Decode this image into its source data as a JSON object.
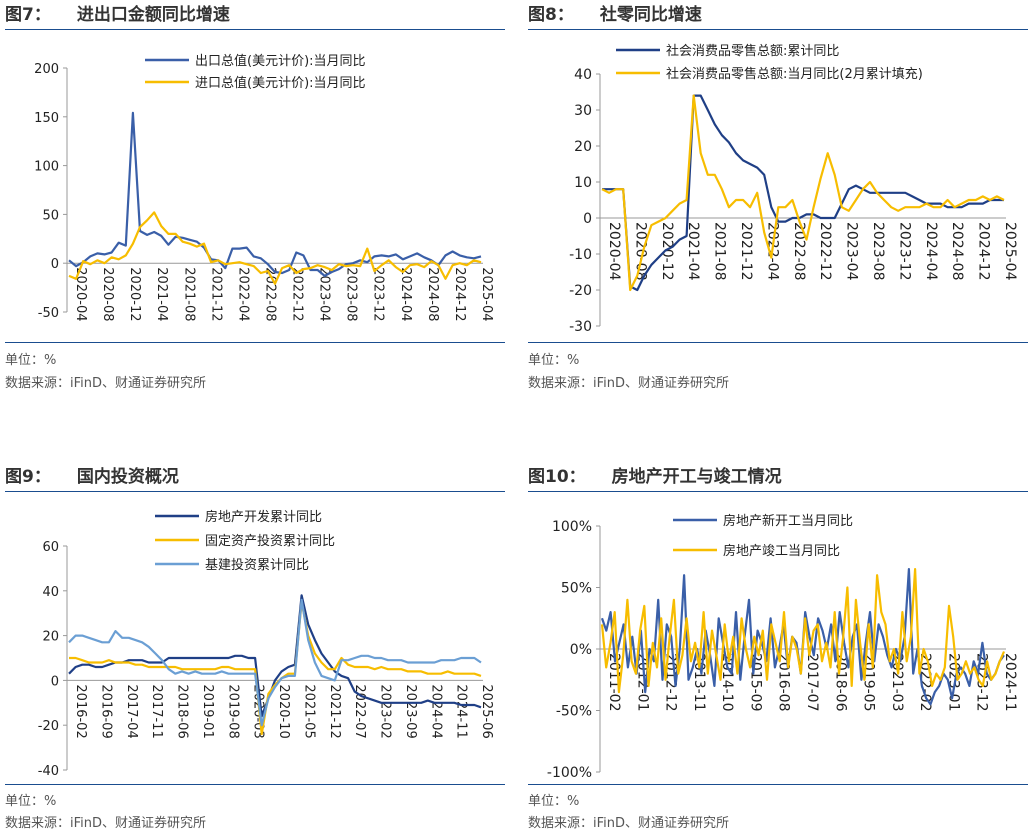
{
  "footer": {
    "unit": "单位：%",
    "source": "数据来源：iFinD、财通证券研究所"
  },
  "colors": {
    "navy": "#1f3f86",
    "blue": "#3a5fa8",
    "gold": "#f7bd00",
    "light": "#6b9fd4",
    "rule": "#1a4d8f"
  },
  "charts": [
    {
      "title_num": "图7：",
      "title_text": "进出口金额同比增速",
      "chart_data": {
        "type": "line",
        "ylim": [
          -50,
          200
        ],
        "yticks": [
          -50,
          0,
          50,
          100,
          150,
          200
        ],
        "x_labels": [
          "2020-04",
          "2020-08",
          "2020-12",
          "2021-04",
          "2021-08",
          "2021-12",
          "2022-04",
          "2022-08",
          "2022-12",
          "2023-04",
          "2023-08",
          "2023-12",
          "2024-04",
          "2024-08",
          "2024-12",
          "2025-04"
        ],
        "series": [
          {
            "name": "出口总值(美元计价):当月同比",
            "color": "blue",
            "values": [
              3,
              -3,
              1,
              7,
              10,
              9,
              11,
              21,
              18,
              154,
              33,
              29,
              32,
              28,
              19,
              27,
              26,
              24,
              22,
              16,
              4,
              3,
              -5,
              15,
              15,
              16,
              7,
              5,
              -1,
              -9,
              -10,
              -7,
              11,
              8,
              -7,
              -7,
              -13,
              -9,
              -6,
              -1,
              0,
              3,
              1,
              7,
              8,
              7,
              9,
              4,
              7,
              10,
              6,
              3,
              -2,
              8,
              12,
              8,
              6,
              5,
              7
            ],
            "annotations": []
          },
          {
            "name": "进口总值(美元计价):当月同比",
            "color": "gold",
            "values": [
              -13,
              -16,
              2,
              -1,
              3,
              0,
              6,
              4,
              8,
              20,
              37,
              44,
              52,
              38,
              30,
              30,
              22,
              20,
              17,
              20,
              1,
              3,
              -1,
              0,
              1,
              -1,
              -3,
              -10,
              -8,
              -21,
              -5,
              -2,
              -10,
              -6,
              -5,
              -2,
              -4,
              -7,
              -1,
              -3,
              -2,
              -3,
              15,
              -8,
              -2,
              3,
              -4,
              -9,
              -2,
              -1,
              -4,
              2,
              -2,
              -16,
              -2,
              0,
              -2,
              3,
              1
            ],
            "annotations": []
          }
        ]
      }
    },
    {
      "title_num": "图8：",
      "title_text": "社零同比增速",
      "chart_data": {
        "type": "line",
        "ylim": [
          -30,
          40
        ],
        "yticks": [
          -30,
          -20,
          -10,
          0,
          10,
          20,
          30,
          40
        ],
        "x_labels": [
          "2020-04",
          "2020-08",
          "2020-12",
          "2021-04",
          "2021-08",
          "2021-12",
          "2022-04",
          "2022-08",
          "2022-12",
          "2023-04",
          "2023-08",
          "2023-12",
          "2024-04",
          "2024-08",
          "2024-12",
          "2025-04"
        ],
        "series": [
          {
            "name": "社会消费品零售总额:累计同比",
            "color": "navy",
            "values": [
              8,
              8,
              8,
              8,
              -19,
              -20,
              -16,
              -13,
              -11,
              -9,
              -8,
              -6,
              -5,
              34,
              34,
              30,
              26,
              23,
              21,
              18,
              16,
              15,
              14,
              12,
              3,
              -1,
              -1,
              0,
              0,
              1,
              1,
              0,
              0,
              0,
              4,
              8,
              9,
              8,
              7,
              7,
              7,
              7,
              7,
              7,
              6,
              5,
              4,
              4,
              4,
              3,
              3,
              3,
              4,
              4,
              4,
              5,
              5,
              5
            ],
            "annotations": []
          },
          {
            "name": "社会消费品零售总额:当月同比(2月累计填充)",
            "color": "gold",
            "values": [
              8,
              7,
              8,
              8,
              -20,
              -16,
              -8,
              -2,
              -1,
              0,
              2,
              4,
              5,
              34,
              18,
              12,
              12,
              8,
              3,
              5,
              5,
              3,
              7,
              -4,
              -11,
              3,
              3,
              5,
              -1,
              -6,
              3,
              11,
              18,
              12,
              3,
              2,
              5,
              8,
              10,
              7,
              5,
              3,
              2,
              3,
              3,
              3,
              4,
              3,
              3,
              5,
              3,
              4,
              5,
              5,
              6,
              5,
              6,
              5
            ],
            "annotations": []
          }
        ]
      }
    },
    {
      "title_num": "图9：",
      "title_text": "国内投资概况",
      "chart_data": {
        "type": "line",
        "ylim": [
          -40,
          60
        ],
        "yticks": [
          -40,
          -20,
          0,
          20,
          40,
          60
        ],
        "x_labels": [
          "2016-02",
          "2016-09",
          "2017-04",
          "2017-11",
          "2018-06",
          "2019-01",
          "2019-08",
          "2020-03",
          "2020-10",
          "2021-05",
          "2021-12",
          "2022-07",
          "2023-02",
          "2023-09",
          "2024-04",
          "2024-11",
          "2025-06"
        ],
        "series": [
          {
            "name": "房地产开发累计同比",
            "color": "navy",
            "values": [
              3,
              6,
              7,
              7,
              6,
              6,
              7,
              8,
              8,
              9,
              9,
              9,
              8,
              8,
              8,
              10,
              10,
              10,
              10,
              10,
              10,
              10,
              10,
              10,
              10,
              11,
              11,
              10,
              10,
              -16,
              -8,
              0,
              4,
              6,
              7,
              38,
              25,
              18,
              12,
              8,
              4,
              2,
              1,
              -5,
              -7,
              -8,
              -9,
              -10,
              -10,
              -10,
              -10,
              -10,
              -10,
              -10,
              -9,
              -10,
              -10,
              -10,
              -10,
              -11,
              -11,
              -11,
              -12
            ],
            "annotations": []
          },
          {
            "name": "固定资产投资累计同比",
            "color": "gold",
            "values": [
              10,
              10,
              9,
              8,
              8,
              8,
              9,
              8,
              8,
              8,
              7,
              7,
              6,
              6,
              6,
              6,
              6,
              5,
              5,
              5,
              5,
              5,
              5,
              6,
              6,
              5,
              5,
              5,
              5,
              -24,
              -6,
              -2,
              1,
              3,
              3,
              35,
              20,
              12,
              8,
              5,
              5,
              10,
              7,
              6,
              6,
              6,
              5,
              6,
              5,
              5,
              5,
              4,
              4,
              4,
              3,
              3,
              3,
              4,
              3,
              3,
              3,
              3,
              2
            ],
            "annotations": []
          },
          {
            "name": "基建投资累计同比",
            "color": "light",
            "values": [
              17,
              20,
              20,
              19,
              18,
              17,
              17,
              22,
              19,
              19,
              18,
              17,
              15,
              12,
              9,
              5,
              3,
              4,
              3,
              4,
              3,
              3,
              3,
              4,
              3,
              3,
              3,
              3,
              3,
              -20,
              -8,
              -3,
              1,
              2,
              2,
              36,
              18,
              8,
              2,
              1,
              0,
              9,
              9,
              10,
              11,
              11,
              10,
              10,
              9,
              9,
              9,
              8,
              8,
              8,
              8,
              8,
              9,
              9,
              9,
              10,
              10,
              10,
              8
            ],
            "annotations": []
          }
        ]
      }
    },
    {
      "title_num": "图10：",
      "title_text": "房地产开工与竣工情况",
      "chart_data": {
        "type": "line",
        "ylim": [
          -100,
          100
        ],
        "yticks": [
          -100,
          -50,
          0,
          50,
          100
        ],
        "ytick_labels": [
          "-100%",
          "-50%",
          "0%",
          "50%",
          "100%"
        ],
        "x_labels": [
          "2011-02",
          "2012-01",
          "2012-12",
          "2013-11",
          "2014-10",
          "2015-09",
          "2016-08",
          "2017-07",
          "2018-06",
          "2019-05",
          "2021-03",
          "2022-02",
          "2023-01",
          "2023-12",
          "2024-11"
        ],
        "series": [
          {
            "name": "房地产新开工当月同比",
            "color": "blue",
            "values": [
              25,
              15,
              30,
              -10,
              5,
              20,
              -15,
              10,
              -20,
              15,
              -35,
              0,
              -10,
              40,
              -25,
              20,
              10,
              -30,
              0,
              60,
              -25,
              -15,
              0,
              -20,
              15,
              -5,
              -30,
              25,
              5,
              -15,
              -20,
              30,
              -25,
              10,
              40,
              -20,
              15,
              5,
              -10,
              25,
              -15,
              0,
              20,
              -15,
              10,
              5,
              -20,
              30,
              10,
              -5,
              25,
              15,
              0,
              20,
              -10,
              30,
              5,
              -15,
              10,
              20,
              -25,
              5,
              30,
              -10,
              20,
              10,
              -5,
              -15,
              0,
              -10,
              10,
              65,
              -20,
              0,
              -30,
              -40,
              -45,
              -35,
              -30,
              -20,
              -25,
              -40,
              -20,
              -15,
              -20,
              -30,
              -10,
              -20,
              5,
              -20,
              -25,
              -20,
              -10,
              -5
            ],
            "annotations": []
          },
          {
            "name": "房地产竣工当月同比",
            "color": "gold",
            "values": [
              20,
              -15,
              5,
              30,
              -35,
              -5,
              40,
              -10,
              -20,
              15,
              35,
              -30,
              5,
              -15,
              25,
              -25,
              10,
              40,
              -20,
              -5,
              25,
              -10,
              5,
              -15,
              30,
              -20,
              15,
              -5,
              -25,
              20,
              -10,
              10,
              -20,
              25,
              0,
              -15,
              10,
              -5,
              15,
              -25,
              20,
              5,
              -10,
              30,
              -15,
              10,
              0,
              -20,
              25,
              -5,
              15,
              20,
              -10,
              5,
              -15,
              30,
              -20,
              10,
              50,
              -30,
              40,
              5,
              -25,
              20,
              -15,
              60,
              30,
              20,
              -10,
              0,
              -20,
              30,
              -10,
              10,
              65,
              -20,
              0,
              -10,
              -30,
              -20,
              -25,
              -15,
              35,
              10,
              -25,
              -20,
              -10,
              -20,
              -15,
              -25,
              -30,
              -10,
              -25,
              -20,
              -10,
              -2
            ],
            "annotations": []
          }
        ]
      }
    }
  ]
}
